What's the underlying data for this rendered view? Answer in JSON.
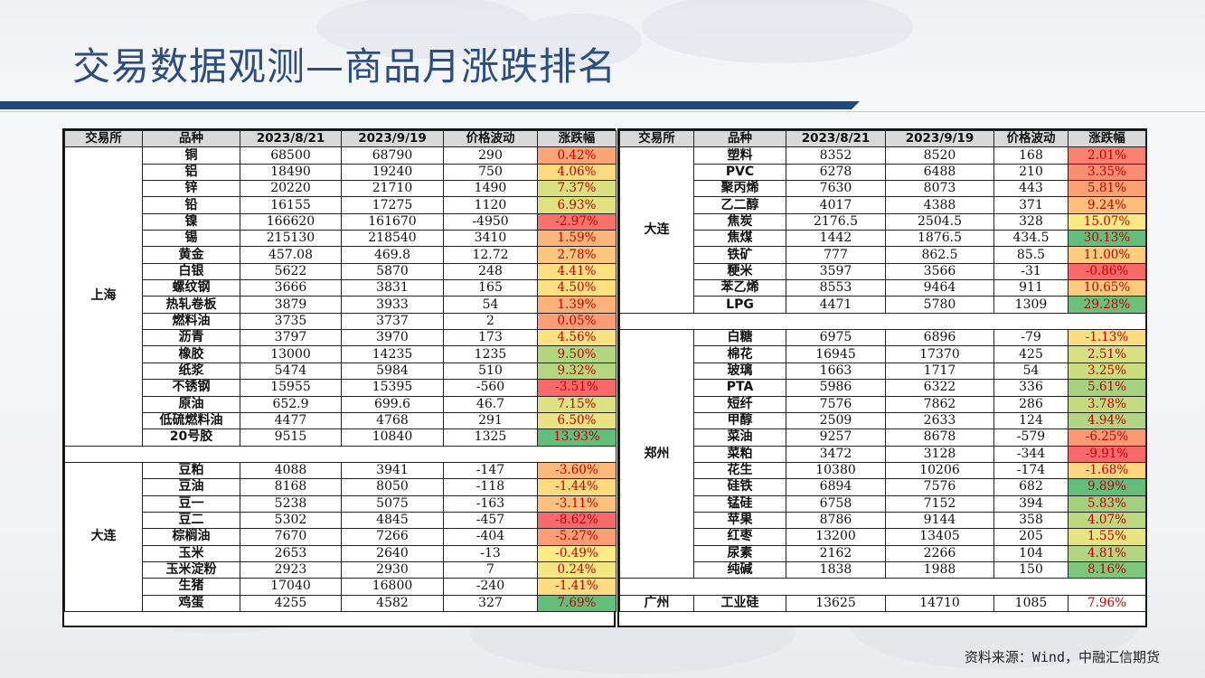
{
  "title": "交易数据观测—商品月涨跌排名",
  "source": "资料来源：Wind，中融汇信期货",
  "headers": {
    "exchange": "交易所",
    "variety": "品种",
    "date1": "2023/8/21",
    "date2": "2023/9/19",
    "change": "价格波动",
    "pct": "涨跌幅"
  },
  "colors": {
    "scale_low": "#f8696b",
    "scale_mid": "#ffeb84",
    "scale_high": "#63be7b",
    "pct_text": "#c00000",
    "title": "#2c4d7d",
    "bar": "#24487a"
  },
  "left_table": [
    {
      "exchange": "上海",
      "rows": [
        {
          "name": "铜",
          "d1": "68500",
          "d2": "68790",
          "chg": "290",
          "pct": "0.42%",
          "v": 0.42
        },
        {
          "name": "铝",
          "d1": "18490",
          "d2": "19240",
          "chg": "750",
          "pct": "4.06%",
          "v": 4.06
        },
        {
          "name": "锌",
          "d1": "20220",
          "d2": "21710",
          "chg": "1490",
          "pct": "7.37%",
          "v": 7.37
        },
        {
          "name": "铅",
          "d1": "16155",
          "d2": "17275",
          "chg": "1120",
          "pct": "6.93%",
          "v": 6.93
        },
        {
          "name": "镍",
          "d1": "166620",
          "d2": "161670",
          "chg": "-4950",
          "pct": "-2.97%",
          "v": -2.97
        },
        {
          "name": "锡",
          "d1": "215130",
          "d2": "218540",
          "chg": "3410",
          "pct": "1.59%",
          "v": 1.59
        },
        {
          "name": "黄金",
          "d1": "457.08",
          "d2": "469.8",
          "chg": "12.72",
          "pct": "2.78%",
          "v": 2.78
        },
        {
          "name": "白银",
          "d1": "5622",
          "d2": "5870",
          "chg": "248",
          "pct": "4.41%",
          "v": 4.41
        },
        {
          "name": "螺纹钢",
          "d1": "3666",
          "d2": "3831",
          "chg": "165",
          "pct": "4.50%",
          "v": 4.5
        },
        {
          "name": "热轧卷板",
          "d1": "3879",
          "d2": "3933",
          "chg": "54",
          "pct": "1.39%",
          "v": 1.39
        },
        {
          "name": "燃料油",
          "d1": "3735",
          "d2": "3737",
          "chg": "2",
          "pct": "0.05%",
          "v": 0.05
        },
        {
          "name": "沥青",
          "d1": "3797",
          "d2": "3970",
          "chg": "173",
          "pct": "4.56%",
          "v": 4.56
        },
        {
          "name": "橡胶",
          "d1": "13000",
          "d2": "14235",
          "chg": "1235",
          "pct": "9.50%",
          "v": 9.5
        },
        {
          "name": "纸浆",
          "d1": "5474",
          "d2": "5984",
          "chg": "510",
          "pct": "9.32%",
          "v": 9.32
        },
        {
          "name": "不锈钢",
          "d1": "15955",
          "d2": "15395",
          "chg": "-560",
          "pct": "-3.51%",
          "v": -3.51
        },
        {
          "name": "原油",
          "d1": "652.9",
          "d2": "699.6",
          "chg": "46.7",
          "pct": "7.15%",
          "v": 7.15
        },
        {
          "name": "低硫燃料油",
          "d1": "4477",
          "d2": "4768",
          "chg": "291",
          "pct": "6.50%",
          "v": 6.5
        },
        {
          "name": "20号胶",
          "d1": "9515",
          "d2": "10840",
          "chg": "1325",
          "pct": "13.93%",
          "v": 13.93
        }
      ]
    },
    {
      "separator": true
    },
    {
      "exchange": "大连",
      "rows": [
        {
          "name": "豆粕",
          "d1": "4088",
          "d2": "3941",
          "chg": "-147",
          "pct": "-3.60%",
          "v": -3.6
        },
        {
          "name": "豆油",
          "d1": "8168",
          "d2": "8050",
          "chg": "-118",
          "pct": "-1.44%",
          "v": -1.44
        },
        {
          "name": "豆一",
          "d1": "5238",
          "d2": "5075",
          "chg": "-163",
          "pct": "-3.11%",
          "v": -3.11
        },
        {
          "name": "豆二",
          "d1": "5302",
          "d2": "4845",
          "chg": "-457",
          "pct": "-8.62%",
          "v": -8.62
        },
        {
          "name": "棕榈油",
          "d1": "7670",
          "d2": "7266",
          "chg": "-404",
          "pct": "-5.27%",
          "v": -5.27
        },
        {
          "name": "玉米",
          "d1": "2653",
          "d2": "2640",
          "chg": "-13",
          "pct": "-0.49%",
          "v": -0.49
        },
        {
          "name": "玉米淀粉",
          "d1": "2923",
          "d2": "2930",
          "chg": "7",
          "pct": "0.24%",
          "v": 0.24
        },
        {
          "name": "生猪",
          "d1": "17040",
          "d2": "16800",
          "chg": "-240",
          "pct": "-1.41%",
          "v": -1.41
        },
        {
          "name": "鸡蛋",
          "d1": "4255",
          "d2": "4582",
          "chg": "327",
          "pct": "7.69%",
          "v": 7.69
        }
      ]
    }
  ],
  "right_table": [
    {
      "exchange": "大连",
      "rows": [
        {
          "name": "塑料",
          "d1": "8352",
          "d2": "8520",
          "chg": "168",
          "pct": "2.01%",
          "v": 2.01
        },
        {
          "name": "PVC",
          "d1": "6278",
          "d2": "6488",
          "chg": "210",
          "pct": "3.35%",
          "v": 3.35
        },
        {
          "name": "聚丙烯",
          "d1": "7630",
          "d2": "8073",
          "chg": "443",
          "pct": "5.81%",
          "v": 5.81
        },
        {
          "name": "乙二醇",
          "d1": "4017",
          "d2": "4388",
          "chg": "371",
          "pct": "9.24%",
          "v": 9.24
        },
        {
          "name": "焦炭",
          "d1": "2176.5",
          "d2": "2504.5",
          "chg": "328",
          "pct": "15.07%",
          "v": 15.07
        },
        {
          "name": "焦煤",
          "d1": "1442",
          "d2": "1876.5",
          "chg": "434.5",
          "pct": "30.13%",
          "v": 30.13
        },
        {
          "name": "铁矿",
          "d1": "777",
          "d2": "862.5",
          "chg": "85.5",
          "pct": "11.00%",
          "v": 11.0
        },
        {
          "name": "粳米",
          "d1": "3597",
          "d2": "3566",
          "chg": "-31",
          "pct": "-0.86%",
          "v": -0.86
        },
        {
          "name": "苯乙烯",
          "d1": "8553",
          "d2": "9464",
          "chg": "911",
          "pct": "10.65%",
          "v": 10.65
        },
        {
          "name": "LPG",
          "d1": "4471",
          "d2": "5780",
          "chg": "1309",
          "pct": "29.28%",
          "v": 29.28
        }
      ]
    },
    {
      "separator": true
    },
    {
      "exchange": "郑州",
      "rows": [
        {
          "name": "白糖",
          "d1": "6975",
          "d2": "6896",
          "chg": "-79",
          "pct": "-1.13%",
          "v": -1.13
        },
        {
          "name": "棉花",
          "d1": "16945",
          "d2": "17370",
          "chg": "425",
          "pct": "2.51%",
          "v": 2.51
        },
        {
          "name": "玻璃",
          "d1": "1663",
          "d2": "1717",
          "chg": "54",
          "pct": "3.25%",
          "v": 3.25
        },
        {
          "name": "PTA",
          "d1": "5986",
          "d2": "6322",
          "chg": "336",
          "pct": "5.61%",
          "v": 5.61
        },
        {
          "name": "短纤",
          "d1": "7576",
          "d2": "7862",
          "chg": "286",
          "pct": "3.78%",
          "v": 3.78
        },
        {
          "name": "甲醇",
          "d1": "2509",
          "d2": "2633",
          "chg": "124",
          "pct": "4.94%",
          "v": 4.94
        },
        {
          "name": "菜油",
          "d1": "9257",
          "d2": "8678",
          "chg": "-579",
          "pct": "-6.25%",
          "v": -6.25
        },
        {
          "name": "菜粕",
          "d1": "3472",
          "d2": "3128",
          "chg": "-344",
          "pct": "-9.91%",
          "v": -9.91
        },
        {
          "name": "花生",
          "d1": "10380",
          "d2": "10206",
          "chg": "-174",
          "pct": "-1.68%",
          "v": -1.68
        },
        {
          "name": "硅铁",
          "d1": "6894",
          "d2": "7576",
          "chg": "682",
          "pct": "9.89%",
          "v": 9.89
        },
        {
          "name": "锰硅",
          "d1": "6758",
          "d2": "7152",
          "chg": "394",
          "pct": "5.83%",
          "v": 5.83
        },
        {
          "name": "苹果",
          "d1": "8786",
          "d2": "9144",
          "chg": "358",
          "pct": "4.07%",
          "v": 4.07
        },
        {
          "name": "红枣",
          "d1": "13200",
          "d2": "13405",
          "chg": "205",
          "pct": "1.55%",
          "v": 1.55
        },
        {
          "name": "尿素",
          "d1": "2162",
          "d2": "2266",
          "chg": "104",
          "pct": "4.81%",
          "v": 4.81
        },
        {
          "name": "纯碱",
          "d1": "1838",
          "d2": "1988",
          "chg": "150",
          "pct": "8.16%",
          "v": 8.16
        }
      ]
    },
    {
      "separator": true
    },
    {
      "exchange": "广州",
      "rows": [
        {
          "name": "工业硅",
          "d1": "13625",
          "d2": "14710",
          "chg": "1085",
          "pct": "7.96%",
          "v": 7.96
        }
      ]
    }
  ]
}
